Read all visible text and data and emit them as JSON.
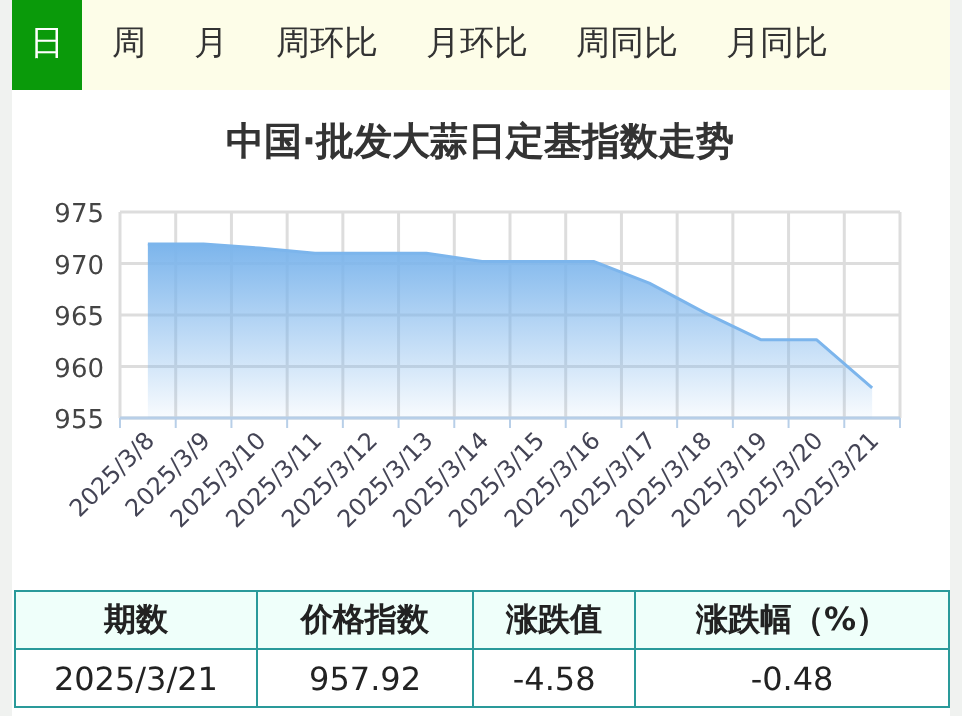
{
  "chart_data": {
    "type": "area",
    "title": "中国·批发大蒜日定基指数走势",
    "categories": [
      "2025/3/8",
      "2025/3/9",
      "2025/3/10",
      "2025/3/11",
      "2025/3/12",
      "2025/3/13",
      "2025/3/14",
      "2025/3/15",
      "2025/3/16",
      "2025/3/17",
      "2025/3/18",
      "2025/3/19",
      "2025/3/20",
      "2025/3/21"
    ],
    "series": [
      {
        "color": "#7cb5ec",
        "values": [
          971.9,
          971.9,
          971.5,
          971.0,
          971.0,
          971.0,
          970.2,
          970.2,
          970.2,
          968.1,
          965.2,
          962.6,
          962.6,
          957.92
        ]
      }
    ],
    "ylim": [
      955,
      975
    ],
    "yticks": [
      955,
      960,
      965,
      970,
      975
    ],
    "grid": true,
    "annotations": [
      "日",
      "周",
      "月",
      "周环比",
      "月环比",
      "周同比",
      "月同比",
      "期数",
      "价格指数",
      "涨跌值",
      "涨跌幅（%）",
      "2025/3/21",
      "957.92",
      "-4.58",
      "-0.48"
    ]
  }
}
